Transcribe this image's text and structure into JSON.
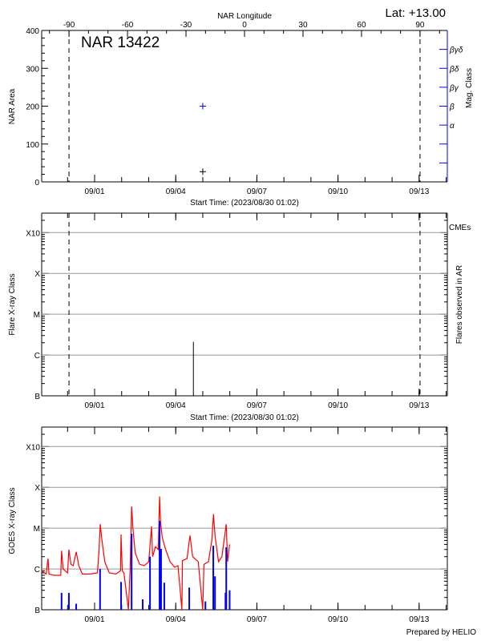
{
  "title": "NAR 13422",
  "latitude_label": "Lat: +13.00",
  "footer": "Prepared by HELIO",
  "colors": {
    "axis": "#000000",
    "grid": "#999999",
    "mag_class": "#0000ff",
    "goes_long": "#ff0000",
    "goes_short": "#0000ff",
    "cme_label": "#ff0000"
  },
  "time_axis": {
    "xlim": [
      "2023/08/30 01:02",
      "2023/09/14 01:02"
    ],
    "xlabel": "Start Time: (2023/08/30 01:02)",
    "xticks": [
      {
        "time": "09/01 00:00",
        "label": "09/01"
      },
      {
        "time": "09/04 00:00",
        "label": "09/04"
      },
      {
        "time": "09/07 00:00",
        "label": "09/07"
      },
      {
        "time": "09/10 00:00",
        "label": "09/10"
      },
      {
        "time": "09/13 00:00",
        "label": "09/13"
      }
    ],
    "minor_tick_step_days": 1
  },
  "chart_data": [
    {
      "type": "scatter",
      "top_axis": {
        "label": "NAR Longitude",
        "range": [
          -104,
          104
        ],
        "ticks": [
          -90,
          -60,
          -30,
          0,
          30,
          60,
          90
        ],
        "tick_labels": [
          "-90",
          "-60",
          "-30",
          "0",
          "30",
          "60",
          "90"
        ]
      },
      "limb_longitudes": [
        -90,
        90
      ],
      "ylabel": "NAR Area",
      "ylim": [
        0,
        400
      ],
      "yticks": [
        0,
        100,
        200,
        300,
        400
      ],
      "ytick_labels": [
        "0",
        "100",
        "200",
        "300",
        "400"
      ],
      "right_axis": {
        "label": "Mag. Class",
        "ticks": [
          {
            "value": 350,
            "label": "βγδ"
          },
          {
            "value": 300,
            "label": "βδ"
          },
          {
            "value": 250,
            "label": "βγ"
          },
          {
            "value": 200,
            "label": "β"
          },
          {
            "value": 150,
            "label": "α"
          },
          {
            "value": 100,
            "label": ""
          },
          {
            "value": 50,
            "label": ""
          }
        ]
      },
      "area_points": [
        {
          "time": "09/05 00:00",
          "area": 27
        }
      ],
      "mag_points": [
        {
          "time": "09/05 00:00",
          "class": "β",
          "value": 200
        }
      ]
    },
    {
      "type": "bar",
      "ylabel": "Flare X-ray Class",
      "right_label": "Flares observed in AR",
      "legend": "CMEs",
      "scale": "log",
      "ylim": [
        1e-07,
        0.003
      ],
      "yticks": [
        {
          "flux": 1e-07,
          "label": "B"
        },
        {
          "flux": 1e-06,
          "label": "C"
        },
        {
          "flux": 1e-05,
          "label": "M"
        },
        {
          "flux": 0.0001,
          "label": "X"
        },
        {
          "flux": 0.001,
          "label": "X10"
        }
      ],
      "limb_longitudes": [
        -90,
        90
      ],
      "flares": [
        {
          "time": "09/04 15:40",
          "class": "C2.1",
          "flux": 2.1e-06
        }
      ]
    },
    {
      "type": "line",
      "ylabel": "GOES X-ray Class",
      "scale": "log",
      "ylim": [
        1e-07,
        0.003
      ],
      "yticks": [
        {
          "flux": 1e-07,
          "label": "B"
        },
        {
          "flux": 1e-06,
          "label": "C"
        },
        {
          "flux": 1e-05,
          "label": "M"
        },
        {
          "flux": 0.0001,
          "label": "X"
        },
        {
          "flux": 0.001,
          "label": "X10"
        }
      ],
      "series": [
        {
          "color": "#ff0000",
          "style": "line",
          "points": [
            [
              "08/30 01:02",
              9e-07
            ],
            [
              "08/30 05:00",
              7.5e-07
            ],
            [
              "08/30 06:40",
              1.8e-06
            ],
            [
              "08/30 07:30",
              7.5e-07
            ],
            [
              "08/30 12:00",
              7e-07
            ],
            [
              "08/30 18:00",
              7e-07
            ],
            [
              "08/30 18:40",
              2.8e-06
            ],
            [
              "08/30 20:00",
              1e-06
            ],
            [
              "08/31 00:00",
              8e-07
            ],
            [
              "08/31 01:10",
              3e-06
            ],
            [
              "08/31 03:00",
              1.3e-06
            ],
            [
              "08/31 05:00",
              1.2e-06
            ],
            [
              "08/31 07:40",
              2.6e-06
            ],
            [
              "08/31 10:00",
              1.2e-06
            ],
            [
              "08/31 13:00",
              7.5e-07
            ],
            [
              "08/31 20:00",
              7.5e-07
            ],
            [
              "09/01 02:30",
              8e-07
            ],
            [
              "09/01 04:00",
              3e-06
            ],
            [
              "09/01 05:00",
              1.25e-05
            ],
            [
              "09/01 06:30",
              5e-06
            ],
            [
              "09/01 09:00",
              1.5e-06
            ],
            [
              "09/01 13:00",
              8e-07
            ],
            [
              "09/01 19:00",
              7.5e-07
            ],
            [
              "09/01 23:00",
              9e-07
            ],
            [
              "09/01 23:30",
              7e-06
            ],
            [
              "09/02 00:30",
              9e-07
            ],
            [
              "09/02 02:00",
              8e-07
            ],
            [
              "09/02 06:00",
              1e-07
            ],
            [
              "09/02 07:30",
              1e-06
            ],
            [
              "09/02 08:50",
              3.4e-05
            ],
            [
              "09/02 10:00",
              1e-05
            ],
            [
              "09/02 12:00",
              2.5e-06
            ],
            [
              "09/02 16:00",
              1.3e-06
            ],
            [
              "09/02 20:00",
              1.2e-06
            ],
            [
              "09/03 00:00",
              1.5e-06
            ],
            [
              "09/03 02:30",
              1.1e-05
            ],
            [
              "09/03 03:30",
              2e-06
            ],
            [
              "09/03 06:00",
              3.5e-06
            ],
            [
              "09/03 08:30",
              3e-06
            ],
            [
              "09/03 09:40",
              6e-05
            ],
            [
              "09/03 10:30",
              1.5e-05
            ],
            [
              "09/03 12:00",
              6e-06
            ],
            [
              "09/03 15:00",
              3e-06
            ],
            [
              "09/03 19:00",
              1.5e-06
            ],
            [
              "09/03 23:00",
              1.1e-06
            ],
            [
              "09/04 02:00",
              1.2e-06
            ],
            [
              "09/04 05:30",
              1e-07
            ],
            [
              "09/04 06:00",
              1.6e-06
            ],
            [
              "09/04 10:00",
              1.8e-06
            ],
            [
              "09/04 12:40",
              6.6e-06
            ],
            [
              "09/04 15:00",
              2e-06
            ],
            [
              "09/04 20:00",
              1.5e-06
            ],
            [
              "09/05 00:00",
              1e-07
            ],
            [
              "09/05 01:00",
              1.3e-06
            ],
            [
              "09/05 05:00",
              1.5e-06
            ],
            [
              "09/05 08:00",
              5e-06
            ],
            [
              "09/05 09:30",
              2.2e-05
            ],
            [
              "09/05 11:00",
              6e-06
            ],
            [
              "09/05 14:00",
              1.5e-06
            ],
            [
              "09/05 17:00",
              2e-06
            ],
            [
              "09/05 20:50",
              1.25e-05
            ],
            [
              "09/05 22:00",
              1.5e-06
            ],
            [
              "09/05 23:50",
              4e-06
            ]
          ]
        },
        {
          "color": "#0000ff",
          "style": "spikes",
          "points": [
            [
              "08/30 18:40",
              2.6e-07
            ],
            [
              "08/31 01:10",
              2.6e-07
            ],
            [
              "08/31 07:40",
              1.4e-07
            ],
            [
              "09/01 04:50",
              1e-06
            ],
            [
              "09/01 23:30",
              4.8e-07
            ],
            [
              "09/02 08:50",
              7.3e-06
            ],
            [
              "09/02 18:40",
              1.8e-07
            ],
            [
              "09/03 01:10",
              2e-06
            ],
            [
              "09/03 09:40",
              1.5e-05
            ],
            [
              "09/03 11:00",
              3.1e-06
            ],
            [
              "09/03 13:50",
              4.6e-07
            ],
            [
              "09/04 12:00",
              3.5e-07
            ],
            [
              "09/05 02:20",
              1.6e-07
            ],
            [
              "09/05 09:20",
              3.7e-06
            ],
            [
              "09/05 10:50",
              6.6e-07
            ],
            [
              "09/05 20:10",
              2.6e-07
            ],
            [
              "09/05 20:50",
              3.4e-06
            ],
            [
              "09/05 23:50",
              3e-07
            ]
          ]
        }
      ]
    }
  ]
}
